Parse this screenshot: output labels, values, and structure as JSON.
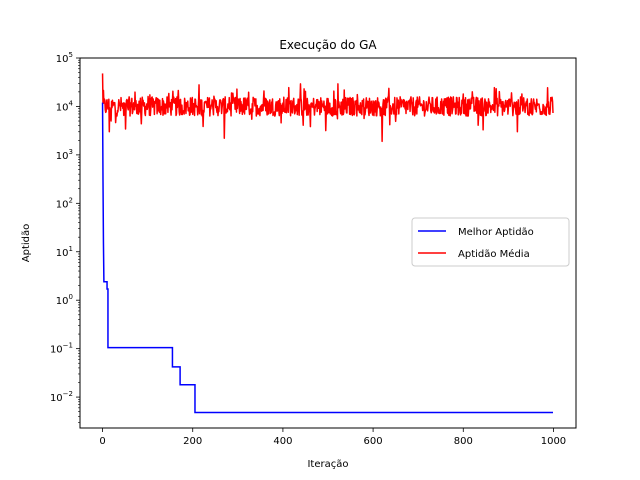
{
  "chart_data": {
    "type": "line",
    "title": "Execução do GA",
    "xlabel": "Iteração",
    "ylabel": "Aptidão",
    "yscale": "log",
    "xlim": [
      -50,
      1050
    ],
    "ylim": [
      0.0023,
      100000
    ],
    "xticks": [
      0,
      200,
      400,
      600,
      800,
      1000
    ],
    "xtick_labels": [
      "0",
      "200",
      "400",
      "600",
      "800",
      "1000"
    ],
    "yticks": [
      0.01,
      0.1,
      1,
      10,
      100,
      1000,
      10000,
      100000
    ],
    "ytick_labels": [
      {
        "base": "10",
        "exp": "−2"
      },
      {
        "base": "10",
        "exp": "−1"
      },
      {
        "base": "10",
        "exp": "0"
      },
      {
        "base": "10",
        "exp": "1"
      },
      {
        "base": "10",
        "exp": "2"
      },
      {
        "base": "10",
        "exp": "3"
      },
      {
        "base": "10",
        "exp": "4"
      },
      {
        "base": "10",
        "exp": "5"
      }
    ],
    "grid": false,
    "legend_position": "center-right",
    "series": [
      {
        "name": "Melhor Aptidão",
        "color": "#0000ff",
        "step_points": [
          [
            0,
            12000
          ],
          [
            1,
            300
          ],
          [
            2,
            15
          ],
          [
            3,
            2.4
          ],
          [
            10,
            2.4
          ],
          [
            10,
            1.7
          ],
          [
            12,
            1.7
          ],
          [
            12,
            0.105
          ],
          [
            155,
            0.105
          ],
          [
            155,
            0.042
          ],
          [
            172,
            0.042
          ],
          [
            172,
            0.018
          ],
          [
            205,
            0.018
          ],
          [
            205,
            0.0048
          ],
          [
            999,
            0.0048
          ]
        ]
      },
      {
        "name": "Aptidão Média",
        "color": "#ff0000",
        "generated": "noise-around-mean",
        "mean": 10000,
        "min_typical": 4000,
        "max_typical": 25000,
        "n_points": 1000,
        "start_value": 48000,
        "dips": [
          [
            270,
            2200
          ],
          [
            620,
            1900
          ],
          [
            15,
            3000
          ],
          [
            920,
            3000
          ]
        ]
      }
    ]
  }
}
